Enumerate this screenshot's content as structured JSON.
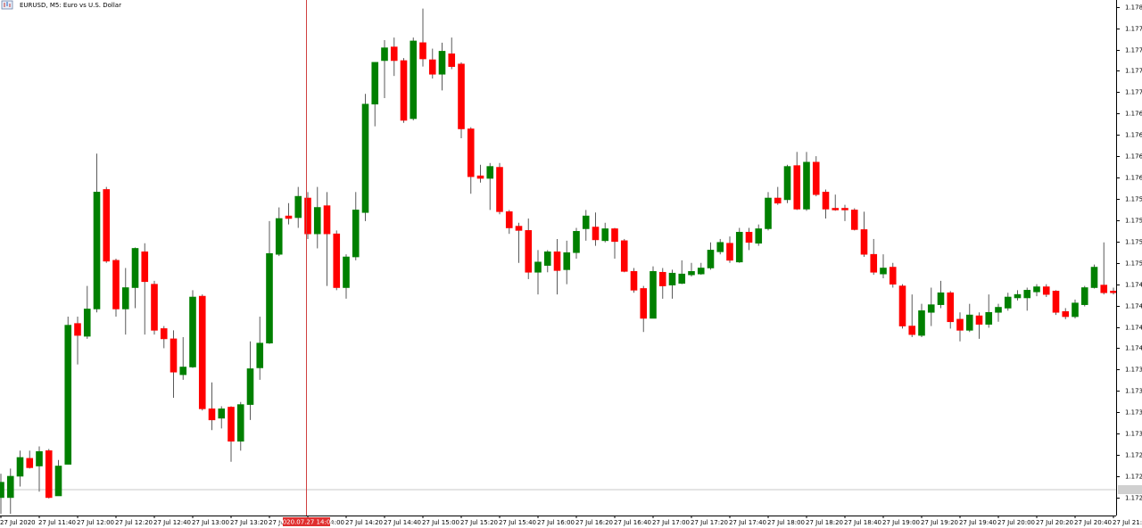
{
  "chart_data": {
    "type": "candlestick",
    "title": "EURUSD, M5:  Euro vs U.S. Dollar",
    "crosshair_label": "2020.07.27 14:00",
    "up_color": "#008000",
    "down_color": "#ff0000",
    "wick_color": "#5a5a5a",
    "ylim": [
      1.17214,
      1.17818
    ],
    "yticks": [
      {
        "value": 1.1781,
        "label": "1.17810"
      },
      1.17785,
      {
        "value": 1.1776,
        "label": "1.17760"
      },
      1.17735,
      {
        "value": 1.1771,
        "label": "1.17710"
      },
      1.17685,
      {
        "value": 1.1766,
        "label": "1.17660"
      },
      1.17635,
      {
        "value": 1.1761,
        "label": "1.17610"
      },
      1.17585,
      {
        "value": 1.1756,
        "label": "1.17560"
      },
      1.17535,
      {
        "value": 1.1751,
        "label": "1.17510"
      },
      1.17485,
      {
        "value": 1.1746,
        "label": "1.17460"
      },
      1.17435,
      {
        "value": 1.1741,
        "label": "1.17410"
      },
      1.17385,
      {
        "value": 1.1736,
        "label": "1.17360"
      },
      1.17335,
      {
        "value": 1.1731,
        "label": "1.17310"
      },
      1.17285,
      {
        "value": 1.1726,
        "label": "1.17260"
      },
      1.17235
    ],
    "categories": [
      "27 Jul 2020",
      null,
      null,
      null,
      "27 Jul 11:40",
      null,
      null,
      null,
      "27 Jul 12:00",
      null,
      null,
      null,
      "27 Jul 12:20",
      null,
      null,
      null,
      "27 Jul 12:40",
      null,
      null,
      null,
      "27 Jul 13:00",
      null,
      null,
      null,
      "27 Jul 13:20",
      null,
      null,
      null,
      "27 Jul 13:40",
      null,
      null,
      null,
      "27 Jul 14:00",
      null,
      null,
      null,
      "27 Jul 14:20",
      null,
      null,
      null,
      "27 Jul 14:40",
      null,
      null,
      null,
      "27 Jul 15:00",
      null,
      null,
      null,
      "27 Jul 15:20",
      null,
      null,
      null,
      "27 Jul 15:40",
      null,
      null,
      null,
      "27 Jul 16:00",
      null,
      null,
      null,
      "27 Jul 16:20",
      null,
      null,
      null,
      "27 Jul 16:40",
      null,
      null,
      null,
      "27 Jul 17:00",
      null,
      null,
      null,
      "27 Jul 17:20",
      null,
      null,
      null,
      "27 Jul 17:40",
      null,
      null,
      null,
      "27 Jul 18:00",
      null,
      null,
      null,
      "27 Jul 18:20",
      null,
      null,
      null,
      "27 Jul 18:40",
      null,
      null,
      null,
      "27 Jul 19:00",
      null,
      null,
      null,
      "27 Jul 19:20",
      null,
      null,
      null,
      "27 Jul 19:40",
      null,
      null,
      null,
      "27 Jul 20:00",
      null,
      null,
      null,
      "27 Jul 20:20",
      null,
      null,
      null,
      "27 Jul 20:40",
      null,
      null,
      null,
      "27 Jul 21:00"
    ],
    "open": [
      1.17235,
      1.17235,
      1.1726,
      1.17281,
      1.17272,
      1.1729,
      1.17237,
      1.17274,
      1.17439,
      1.17424,
      1.17456,
      1.17596,
      1.17513,
      1.17456,
      1.17481,
      1.17523,
      1.17485,
      1.17433,
      1.17421,
      1.17379,
      1.17388,
      1.17471,
      1.17339,
      1.17328,
      1.17341,
      1.17301,
      1.17344,
      1.17387,
      1.17416,
      1.1752,
      1.17565,
      1.17563,
      1.17586,
      1.17544,
      1.17577,
      1.17544,
      1.17481,
      1.17517,
      1.17569,
      1.17696,
      1.17747,
      1.17763,
      1.17747,
      1.17679,
      1.17768,
      1.17748,
      1.17731,
      1.17755,
      1.17743,
      1.17667,
      1.17612,
      1.17609,
      1.17622,
      1.1757,
      1.17553,
      1.17548,
      1.17499,
      1.17507,
      1.17523,
      1.17502,
      1.17522,
      1.1755,
      1.17552,
      1.17536,
      1.1755,
      1.17536,
      1.175,
      1.1748,
      1.17445,
      1.17499,
      1.17484,
      1.17486,
      1.17496,
      1.17497,
      1.17504,
      1.17523,
      1.17533,
      1.17511,
      1.17546,
      1.17533,
      1.1755,
      1.17586,
      1.17584,
      1.17624,
      1.17573,
      1.17628,
      1.17593,
      1.17574,
      1.17574,
      1.17572,
      1.17549,
      1.1752,
      1.17497,
      1.17505,
      1.17483,
      1.17436,
      1.17425,
      1.17452,
      1.17461,
      1.17475,
      1.17444,
      1.17431,
      1.17448,
      1.17438,
      1.17452,
      1.17457,
      1.17469,
      1.17469,
      1.17476,
      1.17482,
      1.17477,
      1.17453,
      1.17447,
      1.17461,
      1.17481,
      1.17484,
      1.17477
    ],
    "high": [
      1.17263,
      1.17269,
      1.1729,
      1.1729,
      1.17295,
      1.17292,
      1.17279,
      1.17447,
      1.17447,
      1.17483,
      1.17638,
      1.17599,
      1.17515,
      1.17504,
      1.17528,
      1.17533,
      1.17489,
      1.17436,
      1.17431,
      1.17423,
      1.17478,
      1.17473,
      1.1737,
      1.17342,
      1.17342,
      1.17347,
      1.17418,
      1.17447,
      1.17559,
      1.17575,
      1.1758,
      1.17599,
      1.17593,
      1.17599,
      1.17593,
      1.17548,
      1.1752,
      1.17593,
      1.17708,
      1.17745,
      1.17771,
      1.17774,
      1.1775,
      1.17774,
      1.17808,
      1.17761,
      1.17768,
      1.17774,
      1.17745,
      1.17669,
      1.17625,
      1.17627,
      1.17627,
      1.17572,
      1.17557,
      1.17562,
      1.17525,
      1.17525,
      1.17538,
      1.17536,
      1.17551,
      1.17572,
      1.17569,
      1.17557,
      1.17551,
      1.17538,
      1.17504,
      1.17483,
      1.17506,
      1.17504,
      1.17502,
      1.17513,
      1.1751,
      1.1751,
      1.17534,
      1.17538,
      1.17541,
      1.17551,
      1.17551,
      1.17555,
      1.17593,
      1.17599,
      1.17625,
      1.1764,
      1.1764,
      1.17635,
      1.17596,
      1.1759,
      1.17578,
      1.17574,
      1.1757,
      1.17538,
      1.1752,
      1.1751,
      1.17485,
      1.17473,
      1.17462,
      1.17481,
      1.17489,
      1.17477,
      1.17452,
      1.17462,
      1.17452,
      1.17473,
      1.17462,
      1.17475,
      1.17478,
      1.17481,
      1.17485,
      1.17485,
      1.17478,
      1.17457,
      1.17467,
      1.17483,
      1.17508,
      1.17534,
      1.17481
    ],
    "low": [
      1.17216,
      1.17216,
      1.17248,
      1.17269,
      1.17242,
      1.17234,
      1.17237,
      1.17274,
      1.17391,
      1.17421,
      1.17452,
      1.1751,
      1.17447,
      1.17426,
      1.17457,
      1.17426,
      1.17426,
      1.1741,
      1.17352,
      1.17373,
      1.17387,
      1.17337,
      1.17314,
      1.17316,
      1.17277,
      1.1729,
      1.17326,
      1.17373,
      1.17415,
      1.17518,
      1.17555,
      1.17551,
      1.17538,
      1.17527,
      1.17483,
      1.17478,
      1.17468,
      1.17513,
      1.17559,
      1.1767,
      1.17703,
      1.17729,
      1.17674,
      1.17677,
      1.1774,
      1.17726,
      1.17712,
      1.17737,
      1.17656,
      1.17591,
      1.17604,
      1.17572,
      1.17567,
      1.17544,
      1.1751,
      1.17491,
      1.17473,
      1.17499,
      1.17473,
      1.17485,
      1.17515,
      1.17536,
      1.1753,
      1.17534,
      1.17515,
      1.17499,
      1.17475,
      1.17429,
      1.17445,
      1.17468,
      1.17468,
      1.17485,
      1.17494,
      1.17496,
      1.17502,
      1.1752,
      1.1751,
      1.1751,
      1.17525,
      1.1753,
      1.17548,
      1.17578,
      1.1758,
      1.17572,
      1.17571,
      1.17588,
      1.17562,
      1.17571,
      1.17559,
      1.17548,
      1.17517,
      1.17496,
      1.17492,
      1.17481,
      1.17433,
      1.17423,
      1.17423,
      1.17436,
      1.17457,
      1.17433,
      1.17418,
      1.17429,
      1.17421,
      1.17434,
      1.17441,
      1.17454,
      1.17466,
      1.17454,
      1.17471,
      1.1747,
      1.17449,
      1.17444,
      1.17445,
      1.17459,
      1.1748,
      1.17473,
      1.17473
    ],
    "close": [
      1.17253,
      1.1726,
      1.17282,
      1.1727,
      1.17289,
      1.17235,
      1.17272,
      1.17437,
      1.17425,
      1.17456,
      1.17593,
      1.17512,
      1.17456,
      1.17481,
      1.17527,
      1.17488,
      1.17431,
      1.17421,
      1.17382,
      1.17388,
      1.1747,
      1.17339,
      1.17326,
      1.17339,
      1.17301,
      1.17344,
      1.17386,
      1.17416,
      1.17521,
      1.17562,
      1.17562,
      1.17588,
      1.17544,
      1.17575,
      1.17544,
      1.17481,
      1.17517,
      1.17572,
      1.17696,
      1.17745,
      1.17762,
      1.17747,
      1.17677,
      1.1777,
      1.17749,
      1.17731,
      1.17758,
      1.1774,
      1.17667,
      1.17611,
      1.17609,
      1.17623,
      1.1757,
      1.17551,
      1.17548,
      1.17499,
      1.17511,
      1.17523,
      1.17501,
      1.17522,
      1.17547,
      1.17565,
      1.17537,
      1.1755,
      1.17535,
      1.175,
      1.17478,
      1.17445,
      1.175,
      1.17483,
      1.17498,
      1.17497,
      1.175,
      1.17504,
      1.17525,
      1.17534,
      1.17513,
      1.17546,
      1.17534,
      1.1755,
      1.17586,
      1.1758,
      1.17623,
      1.17573,
      1.17628,
      1.1759,
      1.17573,
      1.17572,
      1.17572,
      1.17549,
      1.1752,
      1.17499,
      1.17504,
      1.17485,
      1.17436,
      1.17426,
      1.17454,
      1.17461,
      1.17475,
      1.17441,
      1.17431,
      1.17449,
      1.17438,
      1.17452,
      1.17458,
      1.1747,
      1.17473,
      1.17478,
      1.17482,
      1.17473,
      1.17452,
      1.17447,
      1.17463,
      1.17481,
      1.17505,
      1.17475,
      1.17475
    ]
  }
}
